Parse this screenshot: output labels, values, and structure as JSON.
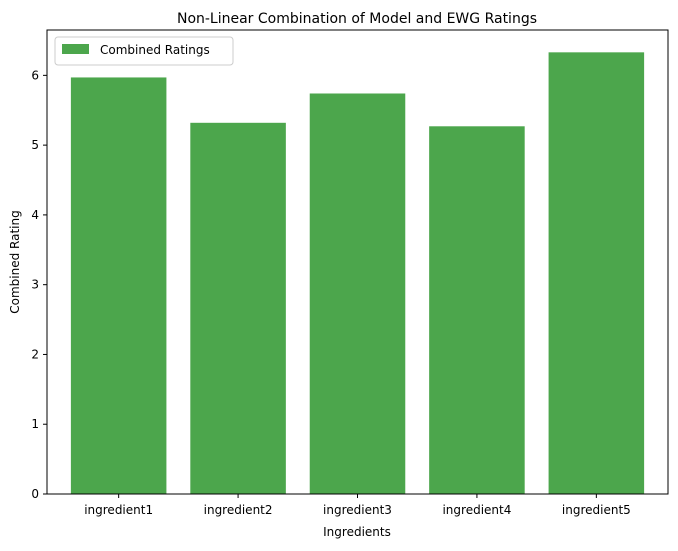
{
  "chart_data": {
    "type": "bar",
    "title": "Non-Linear Combination of Model and EWG Ratings",
    "xlabel": "Ingredients",
    "ylabel": "Combined Rating",
    "categories": [
      "ingredient1",
      "ingredient2",
      "ingredient3",
      "ingredient4",
      "ingredient5"
    ],
    "series": [
      {
        "name": "Combined Ratings",
        "values": [
          5.97,
          5.32,
          5.74,
          5.27,
          6.33
        ],
        "color": "#4ca64c"
      }
    ],
    "ylim": [
      0,
      6.65
    ],
    "yticks": [
      0,
      1,
      2,
      3,
      4,
      5,
      6
    ],
    "ytick_labels": [
      "0",
      "1",
      "2",
      "3",
      "4",
      "5",
      "6"
    ],
    "grid": false,
    "legend": {
      "position": "top-left",
      "entries": [
        "Combined Ratings"
      ]
    }
  }
}
